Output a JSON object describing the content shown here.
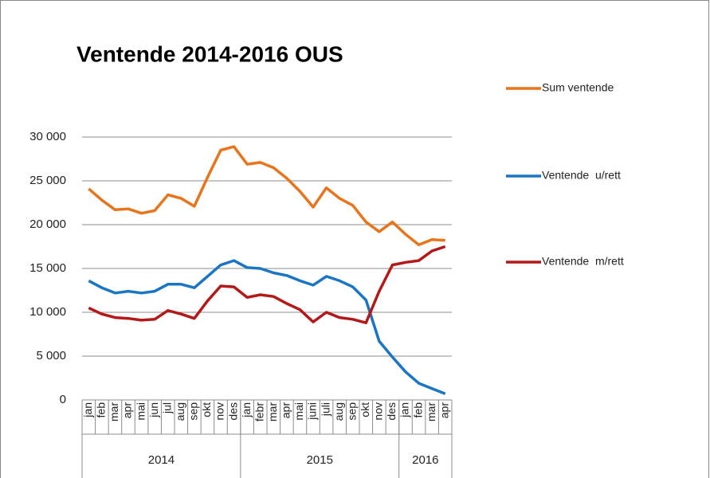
{
  "chart_data": {
    "type": "line",
    "title": "Ventende 2014-2016 OUS",
    "categories": [
      "jan",
      "feb",
      "mar",
      "apr",
      "mai",
      "jun",
      "jul",
      "aug",
      "sep",
      "okt",
      "nov",
      "des",
      "jan",
      "febr",
      "mar",
      "apr",
      "mai",
      "juni",
      "juli",
      "aug",
      "sep",
      "okt",
      "nov",
      "des",
      "jan",
      "feb",
      "mar",
      "apr"
    ],
    "groups": [
      {
        "label": "2014",
        "span": 12
      },
      {
        "label": "2015",
        "span": 12
      },
      {
        "label": "2016",
        "span": 4
      }
    ],
    "series": [
      {
        "name": "Sum ventende",
        "color": "#e8741c",
        "values": [
          24100,
          22800,
          21700,
          21800,
          21300,
          21600,
          23400,
          23000,
          22100,
          25400,
          28500,
          28900,
          26900,
          27100,
          26500,
          25300,
          23800,
          22000,
          24200,
          23000,
          22200,
          20300,
          19200,
          20300,
          18900,
          17700,
          18300,
          18200
        ]
      },
      {
        "name": "Ventende  u/rett",
        "color": "#1a75c4",
        "values": [
          13600,
          12800,
          12200,
          12400,
          12200,
          12400,
          13200,
          13200,
          12800,
          14100,
          15400,
          15900,
          15100,
          15000,
          14500,
          14200,
          13600,
          13100,
          14100,
          13600,
          12900,
          11400,
          6700,
          4900,
          3200,
          1900,
          1300,
          700
        ]
      },
      {
        "name": "Ventende  m/rett",
        "color": "#b51818",
        "values": [
          10500,
          9800,
          9400,
          9300,
          9100,
          9200,
          10200,
          9800,
          9300,
          11300,
          13000,
          12900,
          11700,
          12000,
          11800,
          11000,
          10300,
          8900,
          10000,
          9400,
          9200,
          8800,
          12400,
          15400,
          15700,
          15900,
          17000,
          17500
        ]
      }
    ],
    "ylim": [
      0,
      30000
    ],
    "yticks": [
      0,
      {
        "value": 5000,
        "label": "5 000"
      },
      {
        "value": 10000,
        "label": "10 000"
      },
      {
        "value": 15000,
        "label": "15 000"
      },
      {
        "value": 20000,
        "label": "20 000"
      },
      {
        "value": 25000,
        "label": "25 000"
      },
      {
        "value": 30000,
        "label": "30 000"
      }
    ],
    "grid": true,
    "legend": "right"
  }
}
